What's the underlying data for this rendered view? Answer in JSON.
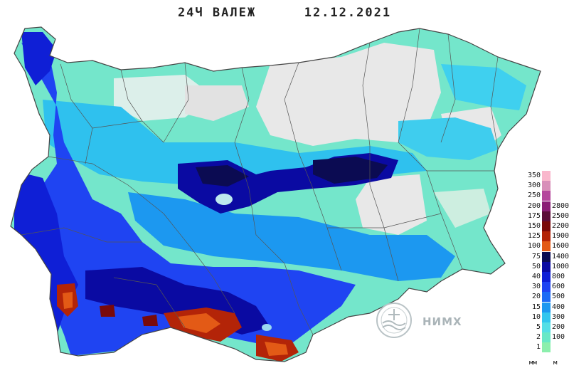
{
  "title": {
    "label": "24Ч ВАЛЕЖ",
    "date": "12.12.2021"
  },
  "legend": {
    "rows": [
      {
        "mm": "350",
        "h": "",
        "color": "#f9b7cc"
      },
      {
        "mm": "300",
        "h": "",
        "color": "#d88fb9"
      },
      {
        "mm": "250",
        "h": "",
        "color": "#b4479c"
      },
      {
        "mm": "200",
        "h": "2800",
        "color": "#8a1e75"
      },
      {
        "mm": "175",
        "h": "2500",
        "color": "#5c0d38"
      },
      {
        "mm": "150",
        "h": "2200",
        "color": "#7a0a0a"
      },
      {
        "mm": "125",
        "h": "1900",
        "color": "#b32408"
      },
      {
        "mm": "100",
        "h": "1600",
        "color": "#e35a16"
      },
      {
        "mm": "75",
        "h": "1400",
        "color": "#0b0b52"
      },
      {
        "mm": "50",
        "h": "1000",
        "color": "#0a0aa2"
      },
      {
        "mm": "40",
        "h": "800",
        "color": "#0f1fd6"
      },
      {
        "mm": "30",
        "h": "600",
        "color": "#1f44f2"
      },
      {
        "mm": "20",
        "h": "500",
        "color": "#1c6bf5"
      },
      {
        "mm": "15",
        "h": "400",
        "color": "#1c98f0"
      },
      {
        "mm": "10",
        "h": "300",
        "color": "#32c6ee"
      },
      {
        "mm": "5",
        "h": "200",
        "color": "#55dfe6"
      },
      {
        "mm": "2",
        "h": "100",
        "color": "#68e8c7"
      },
      {
        "mm": "1",
        "h": "",
        "color": "#8cefad"
      }
    ],
    "unit_left": "мм",
    "unit_right": "м"
  },
  "logo": {
    "text": "НИМХ"
  },
  "colors": {
    "bg": "#ffffff",
    "border": "#333333",
    "no_rain": "#e6e6e6"
  }
}
